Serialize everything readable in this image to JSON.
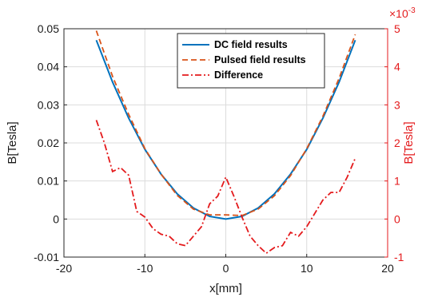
{
  "chart_data": {
    "type": "line",
    "xlabel": "x[mm]",
    "ylabel": "B[Tesla]",
    "ylabel_right": "B[Tesla]",
    "right_axis_exponent_base": "×10",
    "right_axis_exponent_power": "-3",
    "xlim": [
      -20,
      20
    ],
    "ylim": [
      -0.01,
      0.05
    ],
    "ylim_right": [
      -1,
      5
    ],
    "xticks": [
      -20,
      -10,
      0,
      10,
      20
    ],
    "yticks": [
      -0.01,
      0,
      0.01,
      0.02,
      0.03,
      0.04,
      0.05
    ],
    "yticks_right": [
      -1,
      0,
      1,
      2,
      3,
      4,
      5
    ],
    "xtick_labels": [
      "-20",
      "-10",
      "0",
      "10",
      "20"
    ],
    "ytick_labels": [
      "-0.01",
      "0",
      "0.01",
      "0.02",
      "0.03",
      "0.04",
      "0.05"
    ],
    "ytick_labels_right": [
      "-1",
      "0",
      "1",
      "2",
      "3",
      "4",
      "5"
    ],
    "grid": true,
    "legend_position": "top-center",
    "series": [
      {
        "name": "DC field results",
        "axis": "left",
        "color": "#0072bd",
        "style": "solid",
        "x": [
          -16,
          -14,
          -12,
          -10,
          -8,
          -6,
          -4,
          -2,
          0,
          2,
          4,
          6,
          8,
          10,
          12,
          14,
          16
        ],
        "y": [
          0.047,
          0.036,
          0.0265,
          0.0183,
          0.0118,
          0.0066,
          0.0029,
          0.0007,
          0.0,
          0.0007,
          0.0029,
          0.0066,
          0.0118,
          0.0183,
          0.0265,
          0.036,
          0.047
        ]
      },
      {
        "name": "Pulsed field results",
        "axis": "left",
        "color": "#d95319",
        "style": "dashed",
        "x": [
          -16,
          -14,
          -12,
          -10,
          -8,
          -6,
          -4,
          -2,
          0,
          2,
          4,
          6,
          8,
          10,
          12,
          14,
          16
        ],
        "y": [
          0.0495,
          0.0375,
          0.0275,
          0.0185,
          0.0118,
          0.0062,
          0.0026,
          0.0011,
          0.0011,
          0.0009,
          0.0026,
          0.0061,
          0.0114,
          0.0185,
          0.027,
          0.037,
          0.0485
        ]
      },
      {
        "name": "Difference",
        "axis": "right",
        "color": "#e41a1c",
        "style": "dashdot",
        "x": [
          -16,
          -15,
          -14,
          -13,
          -12,
          -11,
          -10,
          -9,
          -8,
          -7,
          -6,
          -5,
          -4,
          -3,
          -2,
          -1,
          0,
          1,
          2,
          3,
          4,
          5,
          6,
          7,
          8,
          9,
          10,
          11,
          12,
          13,
          14,
          15,
          16
        ],
        "y": [
          2.6,
          2.0,
          1.25,
          1.35,
          1.15,
          0.2,
          0.05,
          -0.25,
          -0.4,
          -0.45,
          -0.65,
          -0.7,
          -0.45,
          -0.2,
          0.4,
          0.6,
          1.1,
          0.6,
          0.05,
          -0.45,
          -0.7,
          -0.9,
          -0.75,
          -0.7,
          -0.35,
          -0.45,
          -0.2,
          0.15,
          0.5,
          0.7,
          0.7,
          1.1,
          1.6
        ]
      }
    ]
  }
}
